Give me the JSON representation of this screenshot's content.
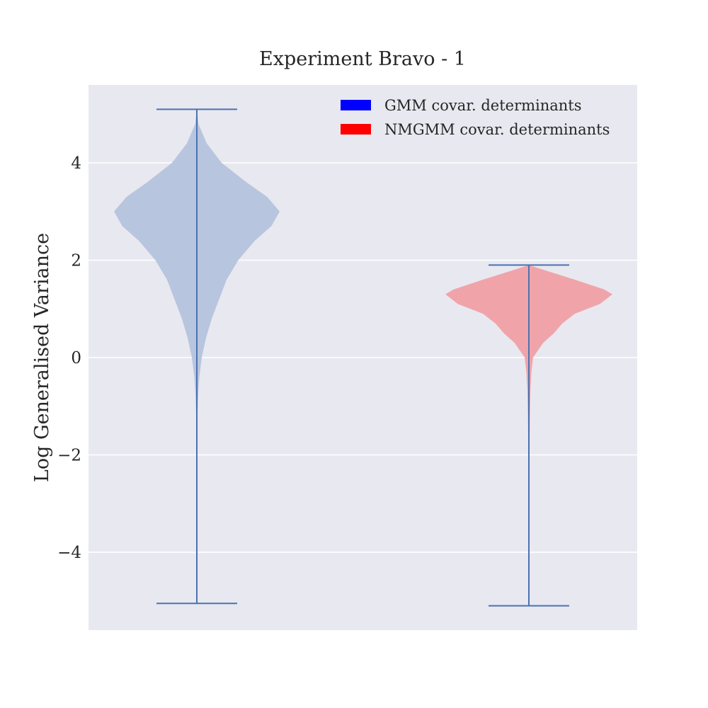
{
  "chart_data": {
    "type": "violin",
    "title": "Experiment Bravo - 1",
    "xlabel": "",
    "ylabel": "Log Generalised Variance",
    "ylim": [
      -5.6,
      5.6
    ],
    "yticks": [
      -4,
      -2,
      0,
      2,
      4
    ],
    "ytick_labels": [
      "−4",
      "−2",
      "0",
      "2",
      "4"
    ],
    "grid": true,
    "legend_position": "top-right",
    "series": [
      {
        "name": "GMM covar. determinants",
        "legend_color": "#0000ff",
        "body_color": "#b8c5de",
        "min": -5.05,
        "max": 5.1,
        "density_profile": [
          [
            5.1,
            0.0
          ],
          [
            4.8,
            0.02
          ],
          [
            4.4,
            0.12
          ],
          [
            4.0,
            0.3
          ],
          [
            3.6,
            0.6
          ],
          [
            3.3,
            0.85
          ],
          [
            3.0,
            1.0
          ],
          [
            2.7,
            0.9
          ],
          [
            2.4,
            0.7
          ],
          [
            2.0,
            0.5
          ],
          [
            1.6,
            0.36
          ],
          [
            1.2,
            0.27
          ],
          [
            0.8,
            0.18
          ],
          [
            0.4,
            0.11
          ],
          [
            0.0,
            0.06
          ],
          [
            -0.4,
            0.03
          ],
          [
            -0.8,
            0.015
          ],
          [
            -1.2,
            0.008
          ],
          [
            -1.6,
            0.0
          ]
        ]
      },
      {
        "name": "NMGMM covar. determinants",
        "legend_color": "#ff0000",
        "body_color": "#f0a4aa",
        "min": -5.1,
        "max": 1.9,
        "density_profile": [
          [
            1.9,
            0.0
          ],
          [
            1.8,
            0.18
          ],
          [
            1.6,
            0.55
          ],
          [
            1.4,
            0.9
          ],
          [
            1.3,
            1.0
          ],
          [
            1.1,
            0.85
          ],
          [
            0.9,
            0.55
          ],
          [
            0.7,
            0.4
          ],
          [
            0.5,
            0.3
          ],
          [
            0.3,
            0.17
          ],
          [
            0.1,
            0.09
          ],
          [
            0.0,
            0.05
          ],
          [
            -0.3,
            0.03
          ],
          [
            -0.7,
            0.018
          ],
          [
            -1.2,
            0.012
          ],
          [
            -1.8,
            0.008
          ],
          [
            -2.5,
            0.004
          ],
          [
            -3.5,
            0.002
          ],
          [
            -4.5,
            0.001
          ],
          [
            -5.1,
            0.0
          ]
        ]
      }
    ],
    "colors": {
      "plot_background": "#e8e8f0",
      "grid": "#ffffff",
      "whisker": "#4c72b0",
      "text": "#262626"
    }
  }
}
